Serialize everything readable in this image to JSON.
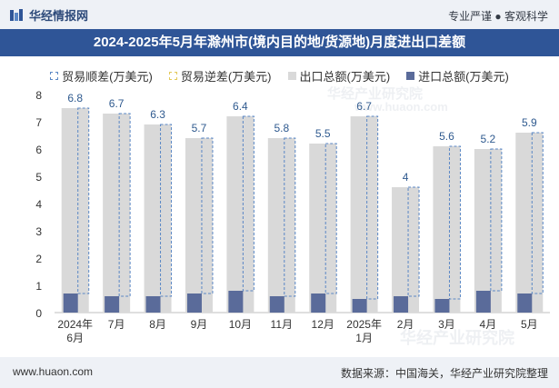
{
  "header": {
    "brand": "华经情报网",
    "tagline": "专业严谨 ● 客观科学"
  },
  "title": "2024-2025年5月年滁州市(境内目的地/货源地)月度进出口差额",
  "legend": {
    "surplus": "贸易顺差(万美元)",
    "deficit": "贸易逆差(万美元)",
    "export": "出口总额(万美元)",
    "import": "进口总额(万美元)"
  },
  "watermarks": [
    "华经产业研究院",
    "www.huaon.com",
    "华经产业研究院"
  ],
  "footer": {
    "url": "www.huaon.com",
    "source": "数据来源：中国海关，华经产业研究院整理"
  },
  "colors": {
    "export": "#d9d9d9",
    "import": "#5a6b9a",
    "surplus_border": "#5a87c5",
    "label": "#2f5a8f",
    "title_bar": "#2f5597"
  },
  "chart_data": {
    "type": "bar",
    "categories": [
      "2024年\n6月",
      "7月",
      "8月",
      "9月",
      "10月",
      "11月",
      "12月",
      "2025年\n1月",
      "2月",
      "3月",
      "4月",
      "5月"
    ],
    "series": [
      {
        "name": "贸易顺差(万美元)",
        "values": [
          6.8,
          6.7,
          6.3,
          5.7,
          6.4,
          5.8,
          5.5,
          6.7,
          4.0,
          5.6,
          5.2,
          5.9
        ]
      },
      {
        "name": "贸易逆差(万美元)",
        "values": [
          0,
          0,
          0,
          0,
          0,
          0,
          0,
          0,
          0,
          0,
          0,
          0
        ]
      },
      {
        "name": "出口总额(万美元)",
        "values": [
          7.5,
          7.3,
          6.9,
          6.4,
          7.2,
          6.4,
          6.2,
          7.2,
          4.6,
          6.1,
          6.0,
          6.6
        ]
      },
      {
        "name": "进口总额(万美元)",
        "values": [
          0.7,
          0.6,
          0.6,
          0.7,
          0.8,
          0.6,
          0.7,
          0.5,
          0.6,
          0.5,
          0.8,
          0.7
        ]
      }
    ],
    "data_labels": [
      "6.8",
      "6.7",
      "6.3",
      "5.7",
      "6.4",
      "5.8",
      "5.5",
      "6.7",
      "4",
      "5.6",
      "5.2",
      "5.9"
    ],
    "y_ticks": [
      "0",
      "1",
      "2",
      "3",
      "4",
      "5",
      "6",
      "7",
      "8"
    ],
    "ylim": [
      0,
      8
    ],
    "title": "2024-2025年5月年滁州市(境内目的地/货源地)月度进出口差额",
    "xlabel": "",
    "ylabel": "",
    "grid": false,
    "legend_position": "top"
  }
}
